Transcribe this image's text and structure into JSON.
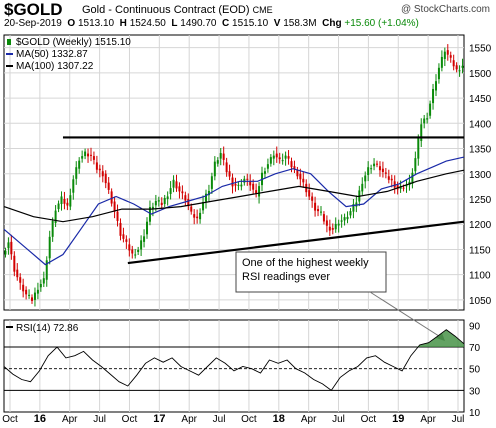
{
  "header": {
    "symbol": "$GOLD",
    "contract": "Gold - Continuous Contract (EOD)",
    "exchange": "CME",
    "brand": "@ StockCharts.com",
    "date": "20-Sep-2019",
    "open_label": "O",
    "open": "1513.10",
    "high_label": "H",
    "high": "1524.50",
    "low_label": "L",
    "low": "1490.70",
    "close_label": "C",
    "close": "1515.10",
    "volume_label": "V",
    "volume": "158.3M",
    "chg_label": "Chg",
    "chg": "+15.60 (+1.04%)"
  },
  "chart_data": [
    {
      "type": "candlestick",
      "legend": [
        {
          "label": "$GOLD (Weekly) 1515.10",
          "color": "#000000"
        },
        {
          "label": "MA(50) 1332.87",
          "color": "#1a2aa8"
        },
        {
          "label": "MA(100) 1307.22",
          "color": "#000000"
        }
      ],
      "ylim": [
        1030,
        1575
      ],
      "yticks": [
        1050,
        1100,
        1150,
        1200,
        1250,
        1300,
        1350,
        1400,
        1450,
        1500,
        1550
      ],
      "xticks": [
        "Oct",
        "16",
        "Apr",
        "Jul",
        "Oct",
        "17",
        "Apr",
        "Jul",
        "Oct",
        "18",
        "Apr",
        "Jul",
        "Oct",
        "19",
        "Apr",
        "Jul"
      ],
      "price": [
        [
          0,
          1140
        ],
        [
          2,
          1165
        ],
        [
          4,
          1110
        ],
        [
          6,
          1080
        ],
        [
          8,
          1060
        ],
        [
          10,
          1050
        ],
        [
          12,
          1075
        ],
        [
          14,
          1090
        ],
        [
          16,
          1175
        ],
        [
          18,
          1230
        ],
        [
          20,
          1250
        ],
        [
          22,
          1235
        ],
        [
          24,
          1290
        ],
        [
          26,
          1330
        ],
        [
          28,
          1340
        ],
        [
          30,
          1335
        ],
        [
          32,
          1310
        ],
        [
          34,
          1300
        ],
        [
          36,
          1265
        ],
        [
          38,
          1225
        ],
        [
          40,
          1180
        ],
        [
          42,
          1160
        ],
        [
          44,
          1140
        ],
        [
          46,
          1150
        ],
        [
          48,
          1180
        ],
        [
          50,
          1230
        ],
        [
          52,
          1245
        ],
        [
          54,
          1240
        ],
        [
          56,
          1260
        ],
        [
          58,
          1285
        ],
        [
          60,
          1265
        ],
        [
          62,
          1250
        ],
        [
          64,
          1220
        ],
        [
          66,
          1210
        ],
        [
          68,
          1245
        ],
        [
          70,
          1270
        ],
        [
          72,
          1320
        ],
        [
          74,
          1340
        ],
        [
          76,
          1305
        ],
        [
          78,
          1280
        ],
        [
          80,
          1275
        ],
        [
          82,
          1290
        ],
        [
          84,
          1280
        ],
        [
          86,
          1255
        ],
        [
          88,
          1300
        ],
        [
          90,
          1320
        ],
        [
          92,
          1340
        ],
        [
          94,
          1325
        ],
        [
          96,
          1335
        ],
        [
          98,
          1315
        ],
        [
          100,
          1300
        ],
        [
          102,
          1280
        ],
        [
          104,
          1255
        ],
        [
          106,
          1230
        ],
        [
          108,
          1220
        ],
        [
          110,
          1195
        ],
        [
          112,
          1190
        ],
        [
          114,
          1205
        ],
        [
          116,
          1210
        ],
        [
          118,
          1225
        ],
        [
          120,
          1245
        ],
        [
          122,
          1285
        ],
        [
          124,
          1310
        ],
        [
          126,
          1320
        ],
        [
          128,
          1310
        ],
        [
          130,
          1295
        ],
        [
          132,
          1285
        ],
        [
          134,
          1270
        ],
        [
          136,
          1275
        ],
        [
          138,
          1280
        ],
        [
          140,
          1330
        ],
        [
          142,
          1400
        ],
        [
          144,
          1415
        ],
        [
          146,
          1465
        ],
        [
          148,
          1510
        ],
        [
          150,
          1545
        ],
        [
          152,
          1525
        ],
        [
          154,
          1505
        ],
        [
          156,
          1515
        ]
      ],
      "ma50": [
        [
          0,
          1190
        ],
        [
          8,
          1150
        ],
        [
          14,
          1120
        ],
        [
          20,
          1140
        ],
        [
          26,
          1190
        ],
        [
          32,
          1240
        ],
        [
          38,
          1255
        ],
        [
          44,
          1240
        ],
        [
          50,
          1220
        ],
        [
          56,
          1235
        ],
        [
          62,
          1245
        ],
        [
          68,
          1255
        ],
        [
          74,
          1275
        ],
        [
          80,
          1285
        ],
        [
          86,
          1285
        ],
        [
          92,
          1300
        ],
        [
          98,
          1310
        ],
        [
          104,
          1300
        ],
        [
          110,
          1265
        ],
        [
          116,
          1235
        ],
        [
          122,
          1240
        ],
        [
          128,
          1270
        ],
        [
          134,
          1280
        ],
        [
          140,
          1300
        ],
        [
          146,
          1315
        ],
        [
          150,
          1325
        ],
        [
          156,
          1333
        ]
      ],
      "ma100": [
        [
          0,
          1235
        ],
        [
          10,
          1215
        ],
        [
          20,
          1205
        ],
        [
          30,
          1215
        ],
        [
          40,
          1230
        ],
        [
          50,
          1230
        ],
        [
          60,
          1235
        ],
        [
          70,
          1245
        ],
        [
          80,
          1255
        ],
        [
          90,
          1265
        ],
        [
          100,
          1275
        ],
        [
          110,
          1265
        ],
        [
          120,
          1255
        ],
        [
          130,
          1265
        ],
        [
          140,
          1285
        ],
        [
          150,
          1300
        ],
        [
          156,
          1307
        ]
      ],
      "trendlines": [
        {
          "from": [
            20,
            1372
          ],
          "to": [
            156,
            1372
          ]
        },
        {
          "from": [
            42,
            1123
          ],
          "to": [
            156,
            1205
          ]
        }
      ],
      "annotation": {
        "text": [
          "One of the highest weekly",
          "RSI readings ever"
        ]
      }
    },
    {
      "type": "line",
      "legend": [
        {
          "label": "RSI(14) 72.86",
          "color": "#000000"
        }
      ],
      "ylim": [
        10,
        95
      ],
      "yticks": [
        10,
        30,
        50,
        70,
        90
      ],
      "levels": [
        30,
        50,
        70
      ],
      "rsi": [
        [
          0,
          52
        ],
        [
          3,
          45
        ],
        [
          6,
          40
        ],
        [
          9,
          38
        ],
        [
          12,
          48
        ],
        [
          15,
          62
        ],
        [
          18,
          70
        ],
        [
          21,
          60
        ],
        [
          24,
          62
        ],
        [
          27,
          66
        ],
        [
          30,
          58
        ],
        [
          33,
          52
        ],
        [
          36,
          45
        ],
        [
          39,
          38
        ],
        [
          42,
          34
        ],
        [
          45,
          44
        ],
        [
          48,
          55
        ],
        [
          51,
          60
        ],
        [
          54,
          56
        ],
        [
          57,
          60
        ],
        [
          60,
          52
        ],
        [
          63,
          48
        ],
        [
          66,
          44
        ],
        [
          69,
          52
        ],
        [
          72,
          60
        ],
        [
          75,
          55
        ],
        [
          78,
          48
        ],
        [
          81,
          52
        ],
        [
          84,
          50
        ],
        [
          87,
          46
        ],
        [
          90,
          58
        ],
        [
          93,
          55
        ],
        [
          96,
          58
        ],
        [
          99,
          50
        ],
        [
          102,
          46
        ],
        [
          105,
          40
        ],
        [
          108,
          36
        ],
        [
          111,
          30
        ],
        [
          114,
          42
        ],
        [
          117,
          48
        ],
        [
          120,
          52
        ],
        [
          123,
          60
        ],
        [
          126,
          62
        ],
        [
          129,
          56
        ],
        [
          132,
          52
        ],
        [
          135,
          48
        ],
        [
          138,
          62
        ],
        [
          141,
          72
        ],
        [
          144,
          74
        ],
        [
          147,
          80
        ],
        [
          150,
          86
        ],
        [
          153,
          80
        ],
        [
          156,
          73
        ]
      ]
    }
  ]
}
